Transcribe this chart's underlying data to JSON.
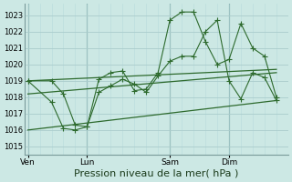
{
  "bg_color": "#cce8e4",
  "grid_color_major": "#aacccc",
  "grid_color_minor": "#bbdddd",
  "line_color": "#2d6a2d",
  "xlabel": "Pression niveau de la mer( hPa )",
  "xlabel_fontsize": 8,
  "ylim": [
    1014.5,
    1023.7
  ],
  "yticks": [
    1015,
    1016,
    1017,
    1018,
    1019,
    1020,
    1021,
    1022,
    1023
  ],
  "xtick_labels": [
    "Ven",
    "Lun",
    "Sam",
    "Dim"
  ],
  "xtick_positions": [
    0,
    5,
    12,
    17
  ],
  "xlim": [
    -0.3,
    21.3
  ],
  "total_points": 22,
  "line1_x": [
    0,
    2,
    3,
    4,
    5,
    6,
    7,
    8,
    9,
    10,
    11,
    12,
    13,
    14,
    15,
    16,
    17,
    18,
    19,
    20,
    21
  ],
  "line1_y": [
    1019.0,
    1017.7,
    1016.1,
    1016.0,
    1016.2,
    1019.1,
    1019.5,
    1019.6,
    1018.4,
    1018.5,
    1019.5,
    1022.7,
    1023.2,
    1023.2,
    1021.4,
    1020.0,
    1020.3,
    1022.5,
    1021.0,
    1020.5,
    1018.0
  ],
  "line2_x": [
    0,
    2,
    3,
    4,
    5,
    6,
    7,
    8,
    9,
    10,
    11,
    12,
    13,
    14,
    15,
    16,
    17,
    18,
    19,
    20,
    21
  ],
  "line2_y": [
    1019.0,
    1019.0,
    1018.2,
    1016.3,
    1016.2,
    1018.3,
    1018.7,
    1019.1,
    1018.8,
    1018.3,
    1019.3,
    1020.2,
    1020.5,
    1020.5,
    1022.0,
    1022.7,
    1019.0,
    1017.9,
    1019.5,
    1019.2,
    1017.8
  ],
  "line3_x": [
    0,
    21
  ],
  "line3_y": [
    1019.0,
    1019.7
  ],
  "line4_x": [
    0,
    21
  ],
  "line4_y": [
    1018.2,
    1019.5
  ],
  "line5_x": [
    0,
    21
  ],
  "line5_y": [
    1016.0,
    1017.8
  ],
  "vline_positions": [
    0,
    5,
    12,
    17
  ]
}
